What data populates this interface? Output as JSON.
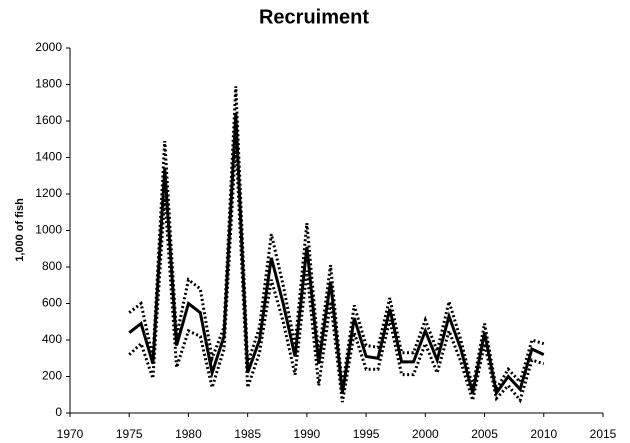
{
  "chart_data": {
    "type": "line",
    "title": "Recruiment",
    "y_label": "1,000 of fish",
    "x": [
      1975,
      1976,
      1977,
      1978,
      1979,
      1980,
      1981,
      1982,
      1983,
      1984,
      1985,
      1986,
      1987,
      1988,
      1989,
      1990,
      1991,
      1992,
      1993,
      1994,
      1995,
      1996,
      1997,
      1998,
      1999,
      2000,
      2001,
      2002,
      2003,
      2004,
      2005,
      2006,
      2007,
      2008,
      2009,
      2010
    ],
    "series": [
      {
        "color": "#000000",
        "dash": "solid",
        "values": [
          440,
          490,
          270,
          1340,
          370,
          600,
          550,
          220,
          420,
          1640,
          220,
          400,
          850,
          600,
          310,
          910,
          270,
          720,
          110,
          520,
          310,
          300,
          570,
          280,
          280,
          450,
          290,
          530,
          350,
          110,
          440,
          110,
          200,
          130,
          350,
          320
        ]
      },
      {
        "color": "#000000",
        "dash": "dotted",
        "values": [
          550,
          600,
          300,
          1490,
          420,
          730,
          680,
          300,
          470,
          1790,
          270,
          470,
          980,
          700,
          370,
          1040,
          320,
          810,
          140,
          590,
          370,
          360,
          630,
          330,
          330,
          510,
          340,
          610,
          400,
          140,
          490,
          130,
          240,
          170,
          400,
          380
        ]
      },
      {
        "color": "#000000",
        "dash": "dotted",
        "values": [
          320,
          380,
          190,
          1190,
          250,
          450,
          420,
          140,
          350,
          1490,
          140,
          330,
          730,
          500,
          210,
          780,
          150,
          610,
          60,
          440,
          240,
          240,
          510,
          210,
          210,
          380,
          220,
          450,
          280,
          70,
          380,
          80,
          150,
          70,
          290,
          270
        ]
      }
    ],
    "xlim": [
      1970,
      2015
    ],
    "xticks": [
      1970,
      1975,
      1980,
      1985,
      1990,
      1995,
      2000,
      2005,
      2010,
      2015
    ],
    "ylim": [
      0,
      2000
    ],
    "yticks": [
      0,
      200,
      400,
      600,
      800,
      1000,
      1200,
      1400,
      1600,
      1800,
      2000
    ]
  }
}
